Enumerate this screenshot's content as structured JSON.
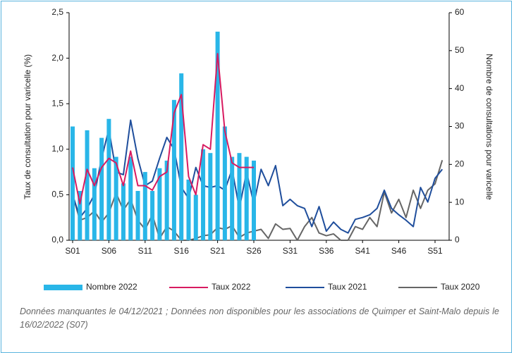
{
  "chart_data": {
    "type": "combo",
    "categories": [
      "S01",
      null,
      null,
      null,
      null,
      "S06",
      null,
      null,
      null,
      null,
      "S11",
      null,
      null,
      null,
      null,
      "S16",
      null,
      null,
      null,
      null,
      "S21",
      null,
      null,
      null,
      null,
      "S26",
      null,
      null,
      null,
      null,
      "S31",
      null,
      null,
      null,
      null,
      "S36",
      null,
      null,
      null,
      null,
      "S41",
      null,
      null,
      null,
      null,
      "S46",
      null,
      null,
      null,
      null,
      "S51",
      null
    ],
    "series": [
      {
        "name": "Nombre 2022",
        "type": "bar",
        "axis": "y2",
        "color": "#29b6e8",
        "values": [
          30,
          13,
          29,
          19,
          27,
          32,
          22,
          15,
          22,
          13,
          18,
          13,
          19,
          21,
          37,
          44,
          16,
          12,
          24,
          23,
          55,
          30,
          22,
          23,
          22,
          21,
          null,
          null,
          null,
          null,
          null,
          null,
          null,
          null,
          null,
          null,
          null,
          null,
          null,
          null,
          null,
          null,
          null,
          null,
          null,
          null,
          null,
          null,
          null,
          null,
          null,
          null
        ]
      },
      {
        "name": "Taux 2022",
        "type": "line",
        "color": "#d81b60",
        "values": [
          0.8,
          0.4,
          0.78,
          0.6,
          0.8,
          0.9,
          0.85,
          0.6,
          0.98,
          0.6,
          0.6,
          0.55,
          0.7,
          0.75,
          1.4,
          1.6,
          0.7,
          0.5,
          1.05,
          1.0,
          2.05,
          1.2,
          0.85,
          0.8,
          0.8,
          0.8,
          null,
          null,
          null,
          null,
          null,
          null,
          null,
          null,
          null,
          null,
          null,
          null,
          null,
          null,
          null,
          null,
          null,
          null,
          null,
          null,
          null,
          null,
          null,
          null,
          null,
          null
        ]
      },
      {
        "name": "Taux 2021",
        "type": "line",
        "color": "#1f4e9c",
        "values": [
          0.5,
          0.25,
          0.35,
          0.5,
          0.9,
          1.22,
          0.75,
          0.72,
          1.32,
          0.9,
          0.6,
          0.65,
          0.9,
          1.13,
          1.0,
          0.58,
          0.46,
          0.8,
          0.6,
          0.58,
          0.6,
          0.55,
          0.78,
          0.35,
          0.75,
          0.4,
          0.78,
          0.6,
          0.82,
          0.38,
          0.45,
          0.38,
          0.35,
          0.15,
          0.37,
          0.1,
          0.2,
          0.12,
          0.08,
          0.23,
          0.25,
          0.28,
          0.35,
          0.55,
          0.35,
          0.28,
          0.22,
          0.15,
          0.58,
          0.42,
          0.68,
          0.78
        ]
      },
      {
        "name": "Taux 2020",
        "type": "line",
        "color": "#666666",
        "values": [
          0.5,
          0.22,
          0.25,
          0.32,
          0.2,
          0.3,
          0.52,
          0.33,
          0.45,
          0.22,
          0.12,
          0.28,
          0.02,
          0.15,
          0.1,
          0,
          0,
          0.02,
          0.05,
          0.06,
          0.14,
          0.12,
          0.16,
          0.03,
          0.08,
          0.1,
          0.12,
          0.02,
          0.18,
          0.12,
          0.13,
          0,
          0.15,
          0.25,
          0.08,
          0.05,
          0.07,
          0,
          0,
          0.15,
          0.12,
          0.25,
          0.15,
          0.53,
          0.3,
          0.45,
          0.25,
          0.55,
          0.35,
          0.55,
          0.62,
          0.88
        ]
      }
    ],
    "ylabel": "Taux de consultation pour varicelle (%)",
    "y2label": "Nombre de consultations pour varicelle",
    "ylim": [
      0,
      2.5
    ],
    "yticks": [
      {
        "value": 0,
        "label": "0,0"
      },
      {
        "value": 0.5,
        "label": "0,5"
      },
      {
        "value": 1,
        "label": "1,0"
      },
      {
        "value": 1.5,
        "label": "1,5"
      },
      {
        "value": 2,
        "label": "2,0"
      },
      {
        "value": 2.5,
        "label": "2,5"
      }
    ],
    "y2lim": [
      0,
      60
    ],
    "y2ticks": [
      0,
      10,
      20,
      30,
      40,
      50,
      60
    ],
    "legend": "bottom",
    "note": "Données manquantes le 04/12/2021 ; Données non disponibles pour les associations de Quimper et Saint-Malo depuis le 16/02/2022 (S07)"
  }
}
